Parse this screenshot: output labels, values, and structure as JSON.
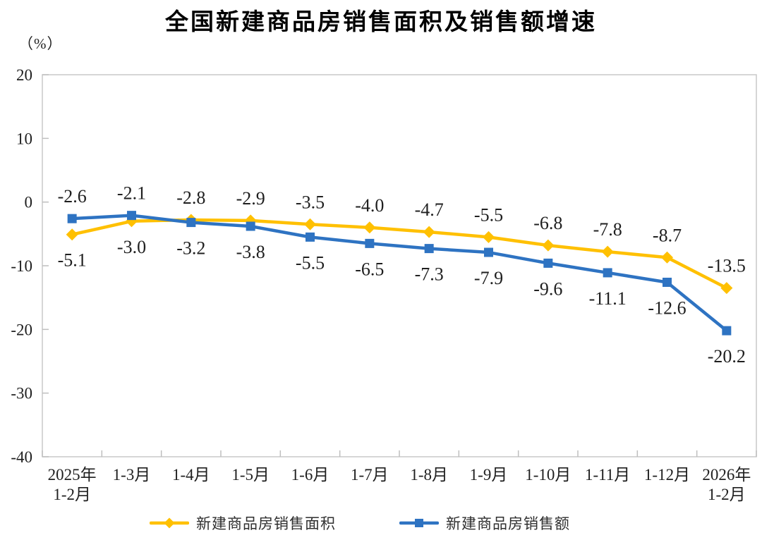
{
  "title": "全国新建商品房销售面积及销售额增速",
  "chart_data": {
    "type": "line",
    "y_axis": {
      "unit_label": "（%）",
      "min": -40,
      "max": 20,
      "tick_step": 10,
      "ticks": [
        20,
        10,
        0,
        -10,
        -20,
        -30,
        -40
      ]
    },
    "categories": [
      "2025年\n1-2月",
      "1-3月",
      "1-4月",
      "1-5月",
      "1-6月",
      "1-7月",
      "1-8月",
      "1-9月",
      "1-10月",
      "1-11月",
      "1-12月",
      "2026年\n1-2月"
    ],
    "series": [
      {
        "name": "新建商品房销售面积",
        "color": "#FFC000",
        "marker": "diamond",
        "values": [
          -5.1,
          -3.0,
          -2.8,
          -2.9,
          -3.5,
          -4.0,
          -4.7,
          -5.5,
          -6.8,
          -7.8,
          -8.7,
          -13.5
        ]
      },
      {
        "name": "新建商品房销售额",
        "color": "#2E73C2",
        "marker": "square",
        "values": [
          -2.6,
          -2.1,
          -3.2,
          -3.8,
          -5.5,
          -6.5,
          -7.3,
          -7.9,
          -9.6,
          -11.1,
          -12.6,
          -20.2
        ]
      }
    ],
    "grid": "off",
    "legend_position": "bottom",
    "data_labels": "on",
    "label_decimals": 1
  },
  "colors": {
    "plot_border": "#C9C9C9",
    "tick": "#BFBFBF",
    "label_text": "#1F1F1F",
    "title_text": "#000000"
  }
}
